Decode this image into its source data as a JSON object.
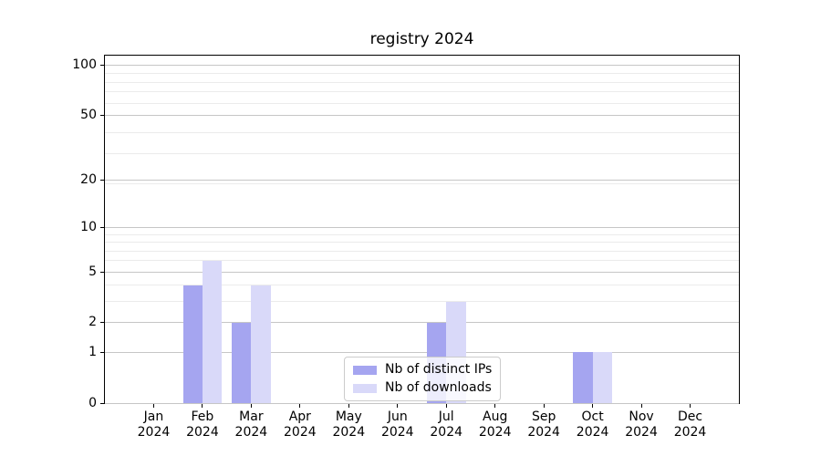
{
  "chart_data": {
    "type": "bar",
    "title": "registry 2024",
    "categories": [
      "Jan",
      "Feb",
      "Mar",
      "Apr",
      "May",
      "Jun",
      "Jul",
      "Aug",
      "Sep",
      "Oct",
      "Nov",
      "Dec"
    ],
    "year": "2024",
    "series": [
      {
        "name": "Nb of distinct IPs",
        "color": "#a5a5f0",
        "values": [
          0,
          4,
          2,
          0,
          0,
          0,
          2,
          0,
          0,
          1,
          0,
          0
        ]
      },
      {
        "name": "Nb of downloads",
        "color": "#d9d9f9",
        "values": [
          0,
          6,
          4,
          0,
          0,
          0,
          3,
          0,
          0,
          1,
          0,
          0
        ]
      }
    ],
    "yscale": "log1p",
    "ylim": [
      0,
      114
    ],
    "y_major_ticks": [
      0,
      1,
      2,
      5,
      10,
      20,
      50,
      100
    ],
    "y_minor_ticks": [
      3,
      4,
      6,
      7,
      8,
      9,
      19,
      29,
      39,
      59,
      69,
      79,
      89
    ],
    "grid": true,
    "legend_position": "lower center",
    "colors": {
      "grid_major": "#c6c6c6",
      "grid_minor": "#ebebeb",
      "legend_border": "#cccccc",
      "text": "#000000"
    }
  }
}
